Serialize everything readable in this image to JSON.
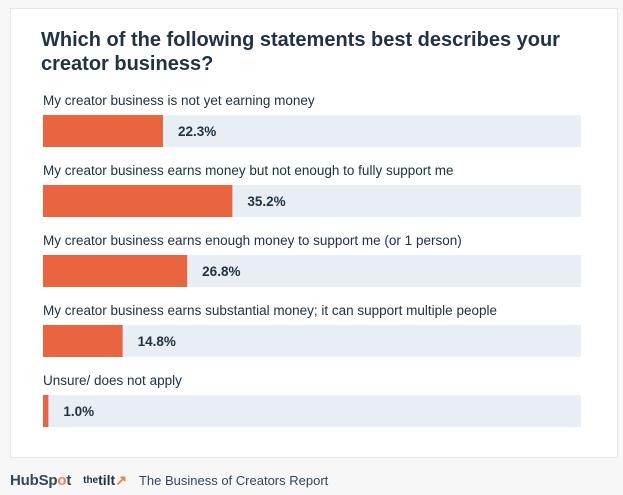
{
  "title": "Which of the following statements best describes your creator business?",
  "chart_data": {
    "type": "bar",
    "orientation": "horizontal",
    "title": "Which of the following statements best describes your creator business?",
    "categories": [
      "My creator business is not yet earning money",
      "My creator business earns money but not enough to fully support me",
      "My creator business earns enough money to support me (or 1 person)",
      "My creator business earns substantial money; it can support multiple people",
      "Unsure/ does not apply"
    ],
    "values": [
      22.3,
      35.2,
      26.8,
      14.8,
      1.0
    ],
    "value_labels": [
      "22.3%",
      "35.2%",
      "26.8%",
      "14.8%",
      "1.0%"
    ],
    "xlim": [
      0,
      100
    ],
    "unit": "%",
    "grid": false,
    "bar_color": "#e8653f",
    "track_color": "#e8eef3",
    "label_color": "#213343"
  },
  "footer": {
    "hubspot_logo": "HubSpot",
    "tilt_logo": "thetilt",
    "report_name": "The Business of Creators Report"
  }
}
